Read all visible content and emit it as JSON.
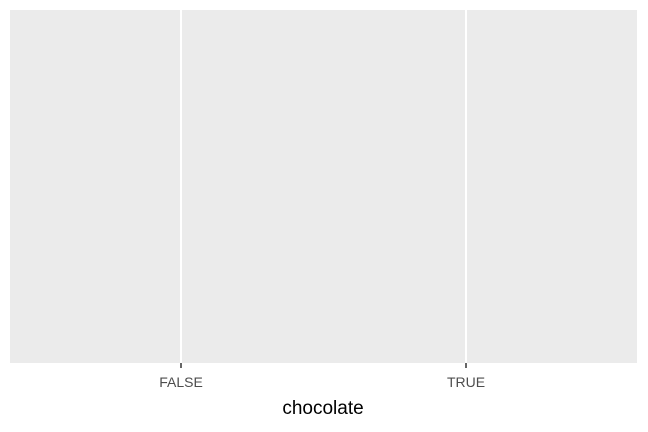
{
  "chart_data": {
    "type": "bar",
    "categories": [
      "FALSE",
      "TRUE"
    ],
    "series": [],
    "title": "",
    "xlabel": "chocolate",
    "ylabel": "",
    "grid": true,
    "panel_background": "#ebebeb",
    "gridline_color": "#ffffff",
    "tick_color": "#333333",
    "tick_label_color": "#4d4d4d"
  }
}
